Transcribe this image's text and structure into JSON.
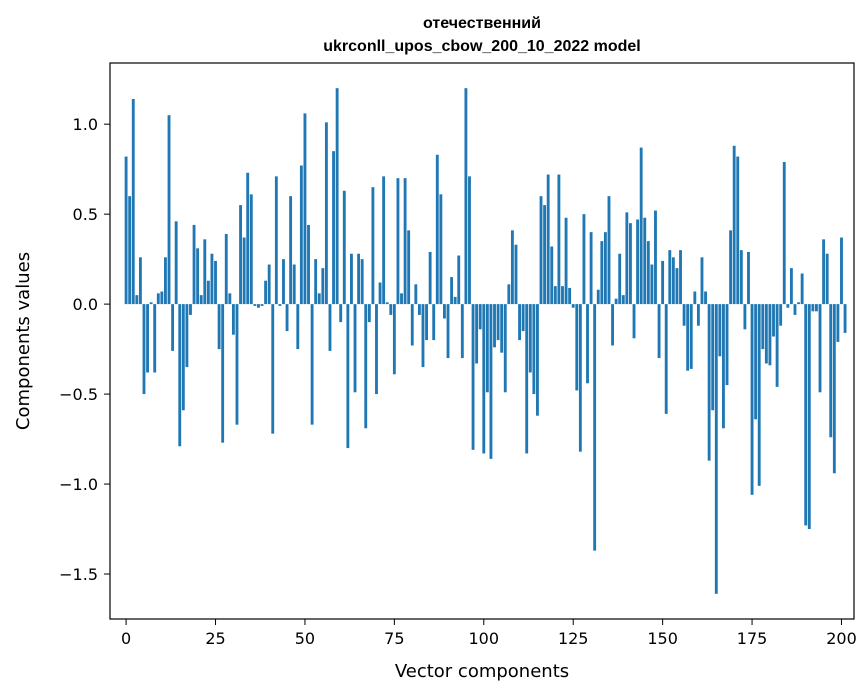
{
  "chart_data": {
    "type": "bar",
    "title_line1": "отечественний",
    "title_line2": "ukrconll_upos_cbow_200_10_2022 model",
    "xlabel": "Vector components",
    "ylabel": "Components values",
    "xlim": [
      -4.5,
      203.5
    ],
    "ylim": [
      -1.75,
      1.34
    ],
    "xticks": [
      0,
      25,
      50,
      75,
      100,
      125,
      150,
      175,
      200
    ],
    "yticks": [
      -1.5,
      -1.0,
      -0.5,
      0.0,
      0.5,
      1.0
    ],
    "ytick_labels": [
      "−1.5",
      "−1.0",
      "−0.5",
      "0.0",
      "0.5",
      "1.0"
    ],
    "bar_color": "#1f77b4",
    "values": [
      0.82,
      0.6,
      1.14,
      0.05,
      0.26,
      -0.5,
      -0.38,
      0.01,
      -0.38,
      0.06,
      0.07,
      0.26,
      1.05,
      -0.26,
      0.46,
      -0.79,
      -0.59,
      -0.35,
      -0.06,
      0.44,
      0.31,
      0.05,
      0.36,
      0.13,
      0.28,
      0.24,
      -0.25,
      -0.77,
      0.39,
      0.06,
      -0.17,
      -0.67,
      0.55,
      0.37,
      0.73,
      0.61,
      -0.01,
      -0.02,
      -0.01,
      0.13,
      0.22,
      -0.72,
      0.71,
      -0.01,
      0.25,
      -0.15,
      0.6,
      0.22,
      -0.25,
      0.77,
      1.06,
      0.44,
      -0.67,
      0.25,
      0.06,
      0.2,
      1.01,
      -0.26,
      0.85,
      1.2,
      -0.1,
      0.63,
      -0.8,
      0.28,
      -0.49,
      0.28,
      0.25,
      -0.69,
      -0.1,
      0.65,
      -0.5,
      0.12,
      0.71,
      0.01,
      -0.06,
      -0.39,
      0.7,
      0.06,
      0.7,
      0.41,
      -0.23,
      0.11,
      -0.06,
      -0.35,
      -0.2,
      0.29,
      -0.2,
      0.83,
      0.61,
      -0.08,
      -0.3,
      0.15,
      0.04,
      0.27,
      -0.3,
      1.2,
      0.71,
      -0.81,
      -0.33,
      -0.14,
      -0.83,
      -0.49,
      -0.86,
      -0.24,
      -0.2,
      -0.27,
      -0.49,
      0.11,
      0.41,
      0.33,
      -0.2,
      -0.15,
      -0.83,
      -0.38,
      -0.5,
      -0.62,
      0.6,
      0.55,
      0.72,
      0.32,
      0.1,
      0.72,
      0.1,
      0.48,
      0.09,
      -0.02,
      -0.48,
      -0.82,
      0.5,
      -0.44,
      0.4,
      -1.37,
      0.08,
      0.35,
      0.4,
      0.6,
      -0.23,
      0.03,
      0.28,
      0.05,
      0.51,
      0.45,
      -0.19,
      0.47,
      0.87,
      0.48,
      0.35,
      0.22,
      0.52,
      -0.3,
      0.24,
      -0.61,
      0.3,
      0.26,
      0.2,
      0.3,
      -0.12,
      -0.37,
      -0.36,
      0.07,
      -0.12,
      0.26,
      0.07,
      -0.87,
      -0.59,
      -1.61,
      -0.29,
      -0.69,
      -0.45,
      0.41,
      0.88,
      0.82,
      0.3,
      -0.14,
      0.29,
      -1.06,
      -0.64,
      -1.01,
      -0.25,
      -0.33,
      -0.34,
      -0.18,
      -0.46,
      -0.12,
      0.79,
      -0.02,
      0.2,
      -0.06,
      0.01,
      0.17,
      -1.23,
      -1.25,
      -0.04,
      -0.04,
      -0.49,
      0.36,
      0.28,
      -0.74,
      -0.94,
      -0.21,
      0.37,
      -0.16
    ]
  }
}
